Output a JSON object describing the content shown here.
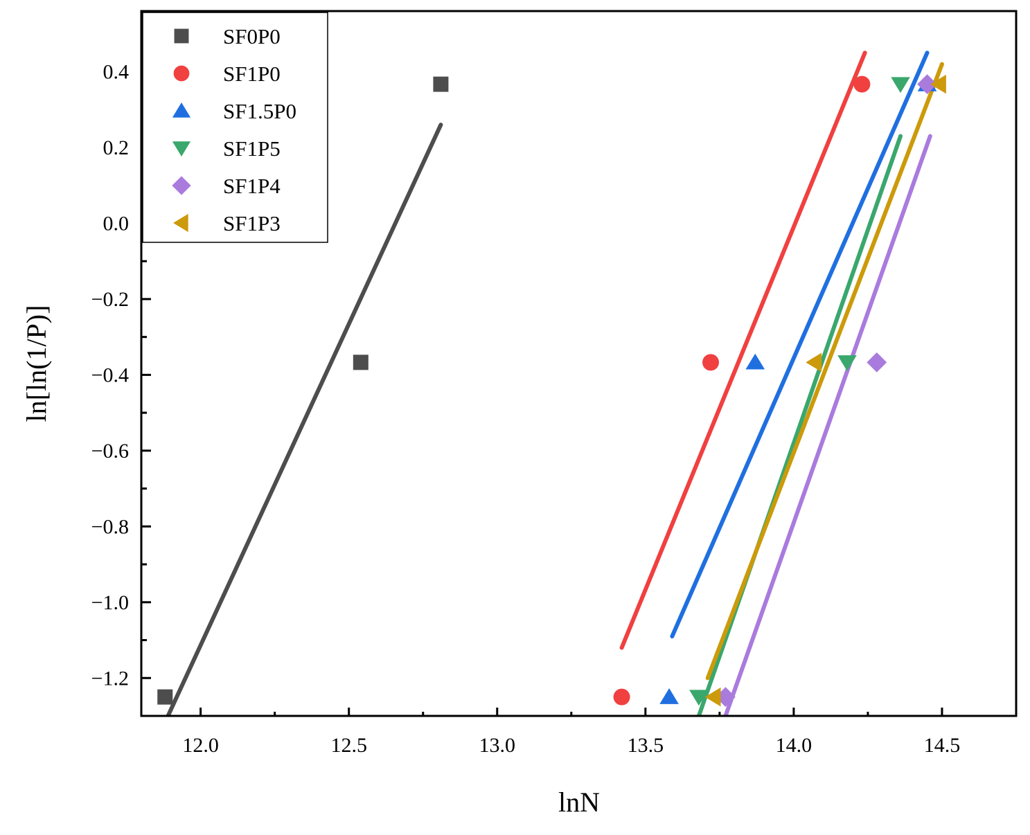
{
  "chart_data": {
    "type": "scatter",
    "title": "",
    "xlabel": "lnN",
    "ylabel": "ln[ln(1/P)]",
    "xlim": [
      11.8,
      14.75
    ],
    "ylim": [
      -1.3,
      0.56
    ],
    "x_ticks": [
      {
        "value": 12.0,
        "label": "12.0"
      },
      {
        "value": 12.5,
        "label": "12.5"
      },
      {
        "value": 13.0,
        "label": "13.0"
      },
      {
        "value": 13.5,
        "label": "13.5"
      },
      {
        "value": 14.0,
        "label": "14.0"
      },
      {
        "value": 14.5,
        "label": "14.5"
      }
    ],
    "x_minor_ticks": [
      12.25,
      12.75,
      13.25,
      13.75,
      14.25,
      14.75
    ],
    "y_ticks": [
      {
        "value": 0.4,
        "label": "0.4"
      },
      {
        "value": 0.2,
        "label": "0.2"
      },
      {
        "value": 0.0,
        "label": "0.0"
      },
      {
        "value": -0.2,
        "label": "−0.2"
      },
      {
        "value": -0.4,
        "label": "−0.4"
      },
      {
        "value": -0.6,
        "label": "−0.6"
      },
      {
        "value": -0.8,
        "label": "−0.8"
      },
      {
        "value": -1.0,
        "label": "−1.0"
      },
      {
        "value": -1.2,
        "label": "−1.2"
      }
    ],
    "y_minor_ticks": [
      0.5,
      0.3,
      0.1,
      -0.1,
      -0.3,
      -0.5,
      -0.7,
      -0.9,
      -1.1
    ],
    "grid": false,
    "legend_position": "top-left",
    "series": [
      {
        "name": "SF0P0",
        "marker": "square",
        "color": "#4d4d4d",
        "x": [
          11.88,
          12.54,
          12.81
        ],
        "y": [
          -1.25,
          -0.367,
          0.367
        ],
        "fit_line": {
          "x": [
            11.89,
            12.81
          ],
          "y": [
            -1.3,
            0.26
          ]
        }
      },
      {
        "name": "SF1P0",
        "marker": "circle",
        "color": "#f04040",
        "x": [
          13.42,
          13.72,
          14.23
        ],
        "y": [
          -1.25,
          -0.367,
          0.367
        ],
        "fit_line": {
          "x": [
            13.42,
            14.24
          ],
          "y": [
            -1.12,
            0.45
          ]
        }
      },
      {
        "name": "SF1.5P0",
        "marker": "triangle-up",
        "color": "#1f6fe0",
        "x": [
          13.58,
          13.87,
          14.45
        ],
        "y": [
          -1.25,
          -0.367,
          0.367
        ],
        "fit_line": {
          "x": [
            13.59,
            14.45
          ],
          "y": [
            -1.09,
            0.45
          ]
        }
      },
      {
        "name": "SF1P5",
        "marker": "triangle-down",
        "color": "#3aa76d",
        "x": [
          13.68,
          14.18,
          14.36
        ],
        "y": [
          -1.25,
          -0.367,
          0.367
        ],
        "fit_line": {
          "x": [
            13.68,
            14.36
          ],
          "y": [
            -1.3,
            0.23
          ]
        }
      },
      {
        "name": "SF1P4",
        "marker": "diamond",
        "color": "#a97bdd",
        "x": [
          13.77,
          14.28,
          14.45
        ],
        "y": [
          -1.25,
          -0.367,
          0.367
        ],
        "fit_line": {
          "x": [
            13.77,
            14.46
          ],
          "y": [
            -1.3,
            0.23
          ]
        }
      },
      {
        "name": "SF1P3",
        "marker": "triangle-left",
        "color": "#cc9a0a",
        "x": [
          13.73,
          14.07,
          14.49
        ],
        "y": [
          -1.25,
          -0.367,
          0.367
        ],
        "fit_line": {
          "x": [
            13.71,
            14.5
          ],
          "y": [
            -1.2,
            0.42
          ]
        }
      }
    ]
  }
}
